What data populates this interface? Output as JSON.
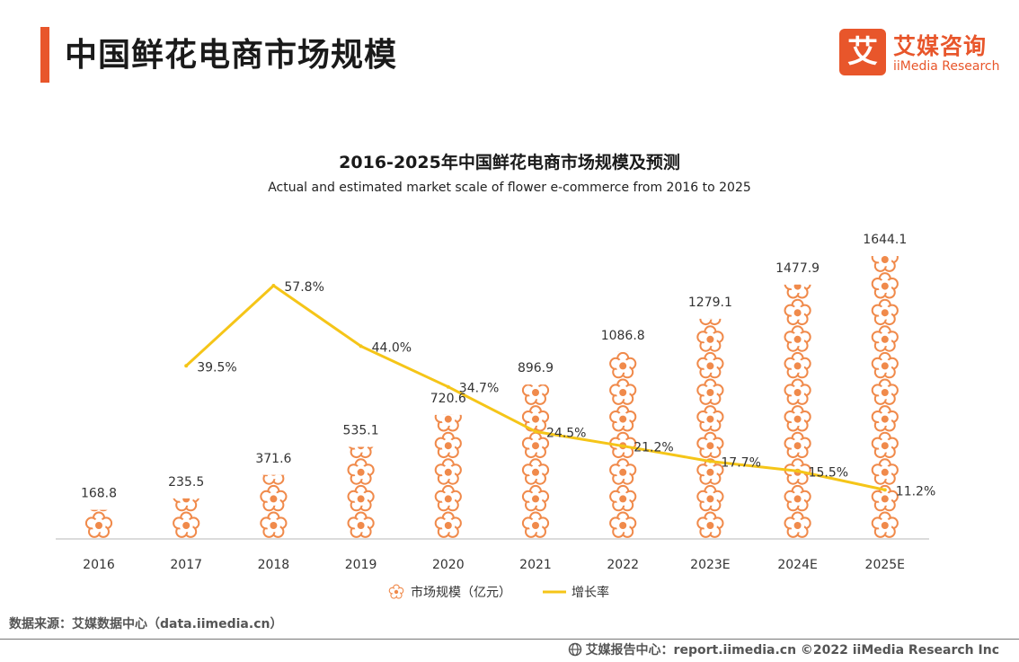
{
  "header": {
    "title": "中国鲜花电商市场规模",
    "logo_mark": "艾",
    "logo_cn": "艾媒咨询",
    "logo_en": "iiMedia Research"
  },
  "chart_data": {
    "type": "bar",
    "title": "2016-2025年中国鲜花电商市场规模及预测",
    "subtitle": "Actual and estimated market scale of flower e-commerce from 2016 to 2025",
    "categories": [
      "2016",
      "2017",
      "2018",
      "2019",
      "2020",
      "2021",
      "2022",
      "2023E",
      "2024E",
      "2025E"
    ],
    "series": [
      {
        "name": "市场规模（亿元）",
        "type": "bar",
        "values": [
          168.8,
          235.5,
          371.6,
          535.1,
          720.6,
          896.9,
          1086.8,
          1279.1,
          1477.9,
          1644.1
        ],
        "labels": [
          "168.8",
          "235.5",
          "371.6",
          "535.1",
          "720.6",
          "896.9",
          "1086.8",
          "1279.1",
          "1477.9",
          "1644.1"
        ],
        "color": "#f08a4b"
      },
      {
        "name": "增长率",
        "type": "line",
        "values": [
          null,
          39.5,
          57.8,
          44.0,
          34.7,
          24.5,
          21.2,
          17.7,
          15.5,
          11.2
        ],
        "labels": [
          null,
          "39.5%",
          "57.8%",
          "44.0%",
          "34.7%",
          "24.5%",
          "21.2%",
          "17.7%",
          "15.5%",
          "11.2%"
        ],
        "color": "#f5c518"
      }
    ],
    "ylim": [
      0,
      1700
    ],
    "y2lim": [
      0,
      80
    ],
    "legend": "bottom-center"
  },
  "source": "数据来源：艾媒数据中心（data.iimedia.cn）",
  "footer": "艾媒报告中心：report.iimedia.cn  ©2022 iiMedia Research Inc",
  "colors": {
    "accent": "#e8562b",
    "bar": "#f08a4b",
    "line": "#f5c518"
  }
}
